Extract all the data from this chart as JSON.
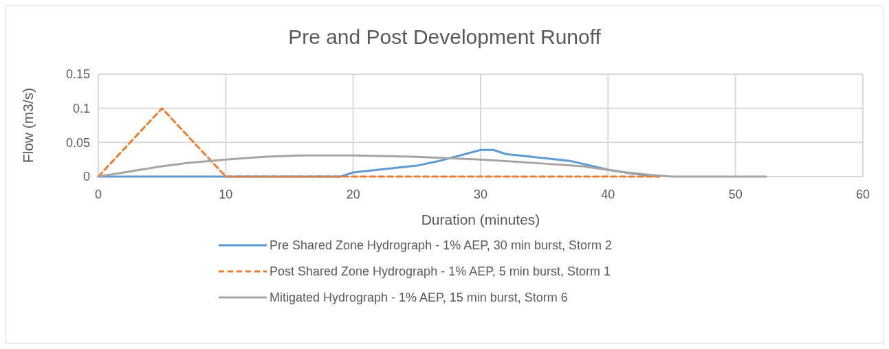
{
  "chart_data": {
    "type": "line",
    "title": "Pre and Post Development Runoff",
    "xlabel": "Duration (minutes)",
    "ylabel": "Flow (m3/s)",
    "xlim": [
      0,
      60
    ],
    "xticks": [
      0,
      10,
      20,
      30,
      40,
      50,
      60
    ],
    "ylim": [
      0,
      0.15
    ],
    "yticks": [
      0,
      0.05,
      0.1,
      0.15
    ],
    "grid": true,
    "legend": "bottom",
    "series": [
      {
        "name": "Pre Shared Zone Hydrograph - 1% AEP, 30 min burst, Storm 2",
        "color": "#5b9bd5",
        "line_style": "solid",
        "x": [
          0,
          19,
          20,
          25,
          27,
          30,
          31,
          32,
          37,
          40,
          42,
          44
        ],
        "values": [
          0,
          0,
          0.006,
          0.016,
          0.024,
          0.039,
          0.039,
          0.033,
          0.023,
          0.01,
          0.004,
          0
        ]
      },
      {
        "name": "Post Shared Zone Hydrograph - 1% AEP, 5 min burst, Storm 1",
        "color": "#ed7d31",
        "line_style": "dashed",
        "x": [
          0,
          5,
          10,
          44
        ],
        "values": [
          0,
          0.1,
          0,
          0
        ]
      },
      {
        "name": "Mitigated Hydrograph - 1% AEP, 15 min burst, Storm 6",
        "color": "#a5a5a5",
        "line_style": "solid",
        "x": [
          0,
          5,
          7,
          10,
          13,
          16,
          20,
          25,
          30,
          35,
          38,
          41,
          43,
          45,
          52.4
        ],
        "values": [
          0,
          0.015,
          0.02,
          0.025,
          0.029,
          0.031,
          0.031,
          0.029,
          0.025,
          0.019,
          0.015,
          0.007,
          0.003,
          0,
          0
        ]
      }
    ]
  }
}
